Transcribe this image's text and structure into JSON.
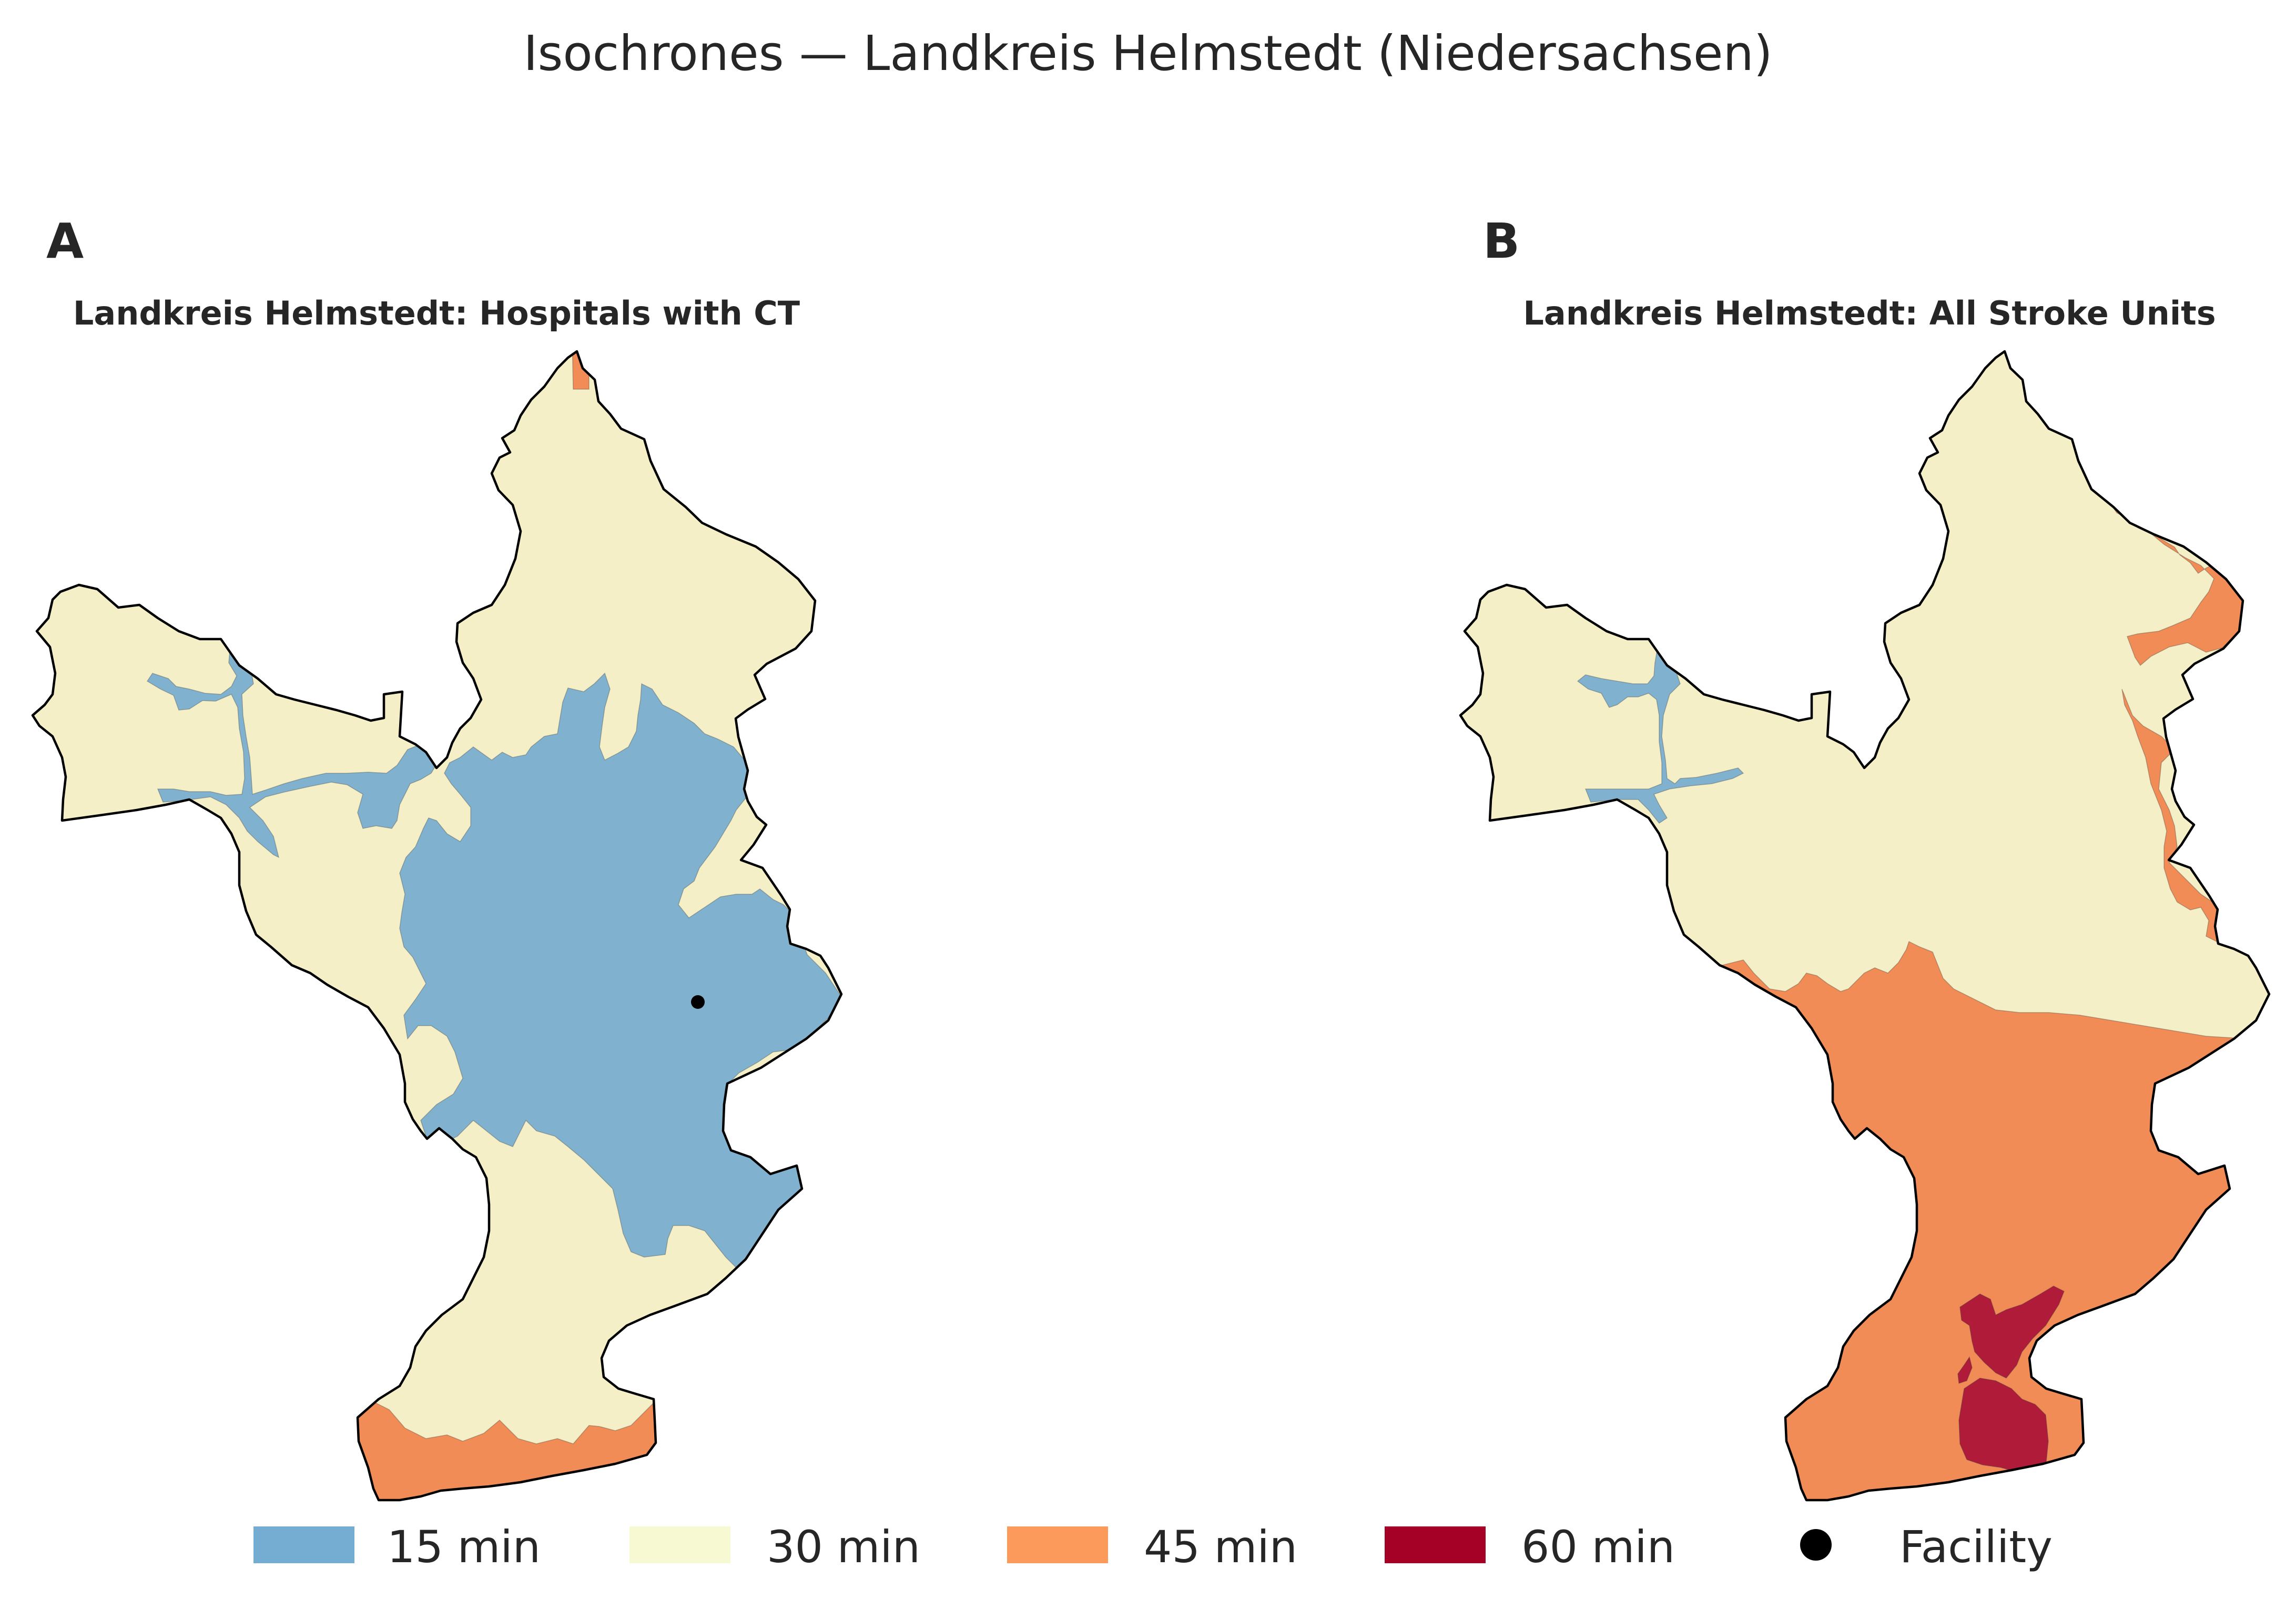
{
  "figure": {
    "title": "Isochrones — Landkreis Helmstedt (Niedersachsen)"
  },
  "panels": [
    {
      "letter": "A",
      "title": "Landkreis Helmstedt: Hospitals with CT",
      "zones_present": [
        "15 min",
        "30 min",
        "45 min"
      ],
      "facility_marker": true
    },
    {
      "letter": "B",
      "title": "Landkreis Helmstedt: All Stroke Units",
      "zones_present": [
        "15 min",
        "30 min",
        "45 min",
        "60 min"
      ],
      "facility_marker": false
    }
  ],
  "legend": {
    "items": [
      {
        "label": "15 min",
        "color": "#74add1",
        "kind": "patch"
      },
      {
        "label": "30 min",
        "color": "#f7f9d3",
        "kind": "patch"
      },
      {
        "label": "45 min",
        "color": "#fb9a5a",
        "kind": "patch"
      },
      {
        "label": "60 min",
        "color": "#a50026",
        "kind": "patch"
      },
      {
        "label": "Facility",
        "color": "#000000",
        "kind": "marker"
      }
    ]
  },
  "map_colors": {
    "15 min": "#80b2cf",
    "30 min": "#f5efc7",
    "45 min": "#f18c56",
    "60 min": "#b01b3a",
    "boundary": "#000000"
  }
}
